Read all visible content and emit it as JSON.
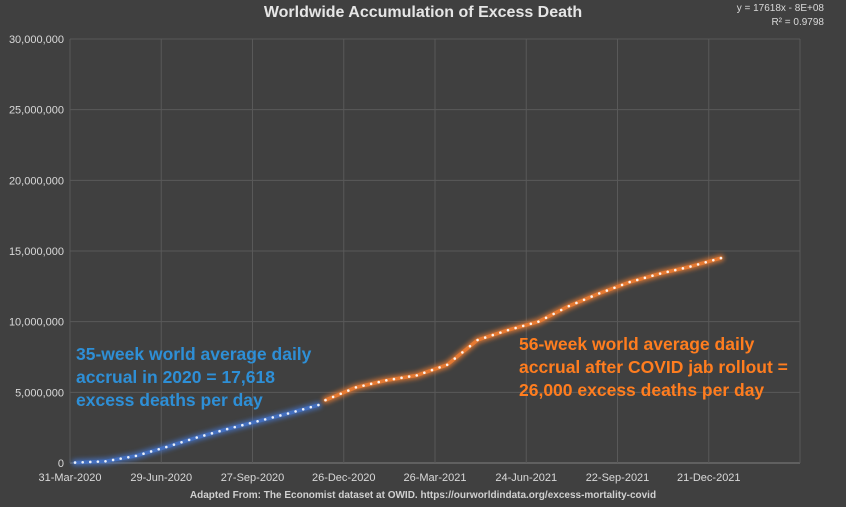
{
  "chart_data": {
    "type": "line",
    "title": "Worldwide Accumulation of Excess Death",
    "trendline_equation": "y = 17618x - 8E+08",
    "trendline_r2": "R² = 0.9798",
    "ylim": [
      0,
      30000000
    ],
    "y_ticks": [
      "0",
      "5,000,000",
      "10,000,000",
      "15,000,000",
      "20,000,000",
      "25,000,000",
      "30,000,000"
    ],
    "x_ticks": [
      "31-Mar-2020",
      "29-Jun-2020",
      "27-Sep-2020",
      "26-Dec-2020",
      "26-Mar-2021",
      "24-Jun-2021",
      "22-Sep-2021",
      "21-Dec-2021"
    ],
    "xlim": [
      "2020-03-31",
      "2022-03-21"
    ],
    "grid": true,
    "series": [
      {
        "color": "#4472c4",
        "x": [
          "2020-04-05",
          "2020-05-05",
          "2020-06-04",
          "2020-07-04",
          "2020-08-03",
          "2020-09-02",
          "2020-10-02",
          "2020-11-01",
          "2020-12-01"
        ],
        "y": [
          30000,
          120000,
          500000,
          1130000,
          1800000,
          2400000,
          2950000,
          3500000,
          4100000
        ]
      },
      {
        "color": "#ed7d31",
        "x": [
          "2020-12-08",
          "2021-01-07",
          "2021-02-06",
          "2021-03-08",
          "2021-04-07",
          "2021-05-07",
          "2021-06-06",
          "2021-07-06",
          "2021-08-05",
          "2021-09-04",
          "2021-10-04",
          "2021-11-03",
          "2021-12-03",
          "2022-01-02"
        ],
        "y": [
          4450000,
          5350000,
          5850000,
          6200000,
          6950000,
          8700000,
          9400000,
          10000000,
          11100000,
          12000000,
          12800000,
          13400000,
          13900000,
          14500000
        ]
      }
    ]
  },
  "annotations": {
    "blue": "35-week world average daily accrual in 2020 = 17,618 excess deaths per day",
    "orange": "56-week world average daily accrual after COVID jab rollout = 26,000 excess deaths per day"
  },
  "source": "Adapted From: The Economist dataset at OWID. https://ourworldindata.org/excess-mortality-covid"
}
